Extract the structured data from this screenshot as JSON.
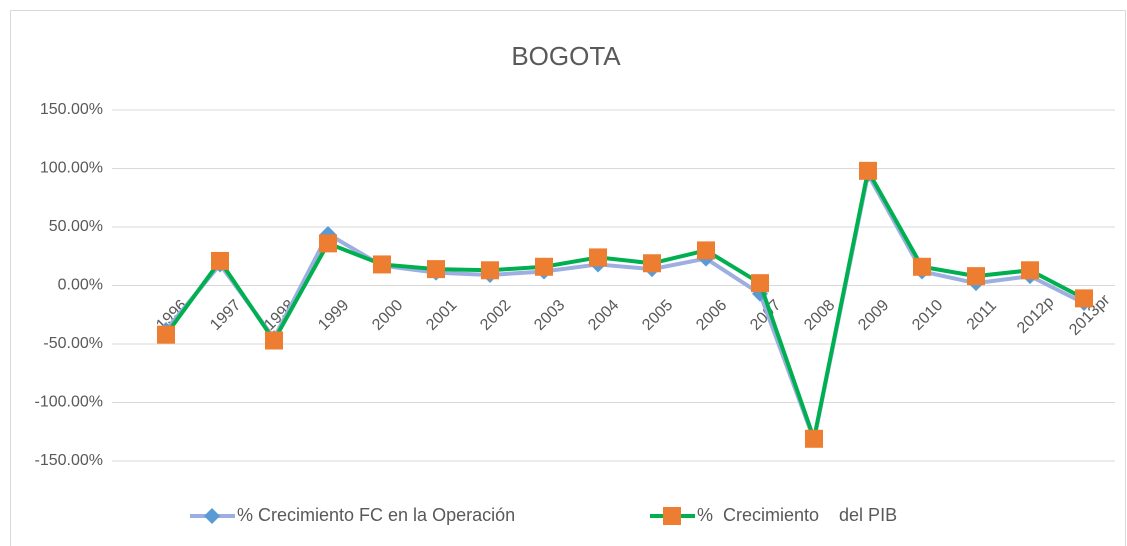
{
  "chart_data": {
    "type": "line",
    "title": "BOGOTA",
    "categories": [
      "1996",
      "1997",
      "1998",
      "1999",
      "2000",
      "2001",
      "2002",
      "2003",
      "2004",
      "2005",
      "2006",
      "2007",
      "2008",
      "2009",
      "2010",
      "2011",
      "2012p",
      "2013pr"
    ],
    "series": [
      {
        "name": "% Crecimiento FC en la Operación",
        "color": "#9dafe0",
        "marker": "diamond",
        "marker_color": "#5b9bd5",
        "values": [
          -38,
          18,
          -45,
          44,
          17,
          11,
          9,
          12,
          18,
          14,
          23,
          -7,
          -132,
          95,
          12,
          2,
          8,
          -15
        ]
      },
      {
        "name": "%  Crecimiento    del PIB",
        "color": "#00b050",
        "marker": "square",
        "marker_color": "#ed7d31",
        "values": [
          -42,
          21,
          -47,
          36,
          18,
          14,
          13,
          16,
          24,
          19,
          30,
          2,
          -131,
          98,
          16,
          8,
          13,
          -11
        ]
      }
    ],
    "ylim": [
      -150,
      150
    ],
    "yticks": [
      {
        "value": -150,
        "label": "-150.00%"
      },
      {
        "value": -100,
        "label": "-100.00%"
      },
      {
        "value": -50,
        "label": "-50.00%"
      },
      {
        "value": 0,
        "label": "0.00%"
      },
      {
        "value": 50,
        "label": "50.00%"
      },
      {
        "value": 100,
        "label": "100.00%"
      },
      {
        "value": 150,
        "label": "150.00%"
      }
    ],
    "grid": true,
    "legend": "bottom"
  }
}
